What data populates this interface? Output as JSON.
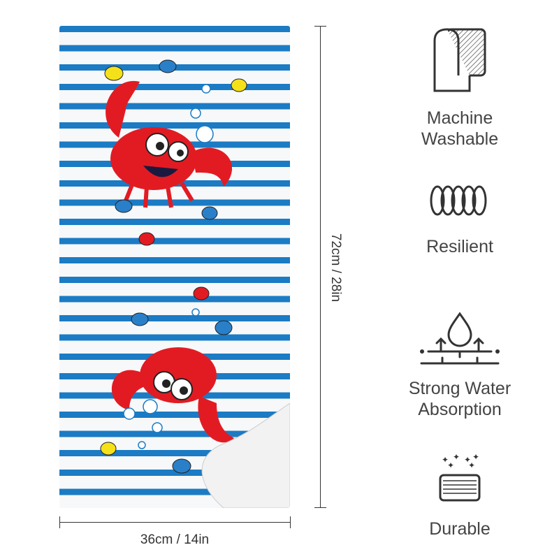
{
  "product": {
    "stripe_color": "#1b7bc4",
    "crab_color": "#e21b23",
    "dimensions": {
      "height_label": "72cm / 28in",
      "width_label": "36cm / 14in"
    }
  },
  "features": [
    {
      "icon": "towel-roll-icon",
      "line1": "Machine",
      "line2": "Washable"
    },
    {
      "icon": "spring-coil-icon",
      "line1": "Resilient",
      "line2": ""
    },
    {
      "icon": "water-drop-absorption-icon",
      "line1": "Strong Water",
      "line2": "Absorption"
    },
    {
      "icon": "sparkle-fabric-icon",
      "line1": "Durable",
      "line2": ""
    }
  ]
}
